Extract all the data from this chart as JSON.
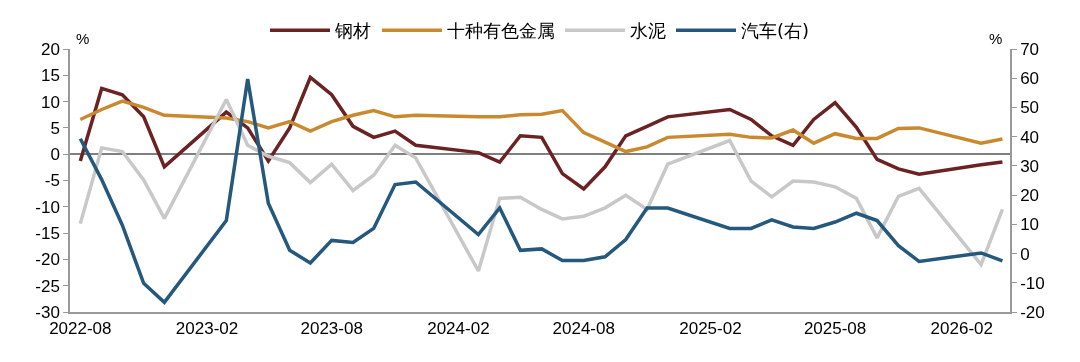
{
  "chart_data": {
    "type": "line",
    "x": [
      "2022-08",
      "2022-09",
      "2022-10",
      "2022-11",
      "2022-12",
      "2023-03",
      "2023-04",
      "2023-05",
      "2023-06",
      "2023-07",
      "2023-08",
      "2023-09",
      "2023-10",
      "2023-11",
      "2023-12",
      "2024-03",
      "2024-04",
      "2024-05",
      "2024-06",
      "2024-07",
      "2024-08",
      "2024-09",
      "2024-10",
      "2024-11",
      "2024-12",
      "2025-03",
      "2025-04",
      "2025-05",
      "2025-06",
      "2025-07",
      "2025-08",
      "2025-09",
      "2025-10",
      "2025-11",
      "2025-12",
      "2026-03",
      "2026-04"
    ],
    "series": [
      {
        "name": "钢材",
        "color": "#6b2222",
        "values": [
          -1.3,
          12.5,
          11.3,
          7.1,
          -2.4,
          8.0,
          5.0,
          -1.3,
          5.0,
          14.6,
          11.3,
          5.3,
          3.2,
          4.4,
          1.7,
          0.3,
          -1.5,
          3.5,
          3.2,
          -3.7,
          -6.6,
          -2.4,
          3.5,
          5.3,
          7.1,
          8.5,
          6.6,
          3.5,
          1.7,
          6.6,
          9.8,
          5.1,
          -1.0,
          -2.8,
          -3.8,
          -2.0,
          -1.5
        ]
      },
      {
        "name": "十种有色金属",
        "color": "#c98a2f",
        "values": [
          6.6,
          8.5,
          10.1,
          8.9,
          7.4,
          6.9,
          6.2,
          5.0,
          6.2,
          4.4,
          6.2,
          7.4,
          8.3,
          7.1,
          7.4,
          7.1,
          7.1,
          7.5,
          7.6,
          8.3,
          4.1,
          2.3,
          0.5,
          1.4,
          3.2,
          3.8,
          3.2,
          3.1,
          4.6,
          2.1,
          3.9,
          3.0,
          3.0,
          4.9,
          5.0,
          2.1,
          2.9
        ]
      },
      {
        "name": "水泥",
        "color": "#c8c8c8",
        "values": [
          -13.2,
          1.2,
          0.5,
          -4.9,
          -12.2,
          10.4,
          1.7,
          -0.4,
          -1.6,
          -5.4,
          -1.9,
          -6.9,
          -4.0,
          1.7,
          -0.7,
          -22.2,
          -8.4,
          -8.2,
          -10.5,
          -12.3,
          -11.8,
          -10.2,
          -7.8,
          -10.5,
          -1.9,
          2.6,
          -5.1,
          -8.1,
          -5.1,
          -5.3,
          -6.2,
          -8.4,
          -15.9,
          -8.0,
          -6.5,
          -21.0,
          -10.5
        ]
      },
      {
        "name": "汽车(右)",
        "color": "#24587d",
        "axis": "y2",
        "values": [
          39.3,
          25.3,
          9.7,
          -10.2,
          -16.7,
          11.3,
          59.7,
          17.2,
          1.1,
          -3.2,
          4.5,
          3.8,
          8.6,
          23.6,
          24.5,
          6.5,
          15.6,
          1.1,
          1.6,
          -2.4,
          -2.4,
          -1.1,
          4.8,
          15.6,
          15.6,
          8.6,
          8.6,
          11.5,
          9.1,
          8.6,
          10.8,
          13.8,
          11.3,
          2.7,
          -2.7,
          0.2,
          -2.5
        ]
      }
    ],
    "xlim": [
      "2022-07-17",
      "2026-04-12"
    ],
    "xticks": [
      "2022-08",
      "2023-02",
      "2023-08",
      "2024-02",
      "2024-08",
      "2025-02",
      "2025-08",
      "2026-02"
    ],
    "ylabel": "%",
    "y2label": "%",
    "ylim": [
      -30,
      20
    ],
    "yticks": [
      -30,
      -25,
      -20,
      -15,
      -10,
      -5,
      0,
      5,
      10,
      15,
      20
    ],
    "y2lim": [
      -20,
      70
    ],
    "y2ticks": [
      -20,
      -10,
      0,
      10,
      20,
      30,
      40,
      50,
      60,
      70
    ],
    "legend": "top",
    "marker": "none",
    "line_style": "solid"
  }
}
